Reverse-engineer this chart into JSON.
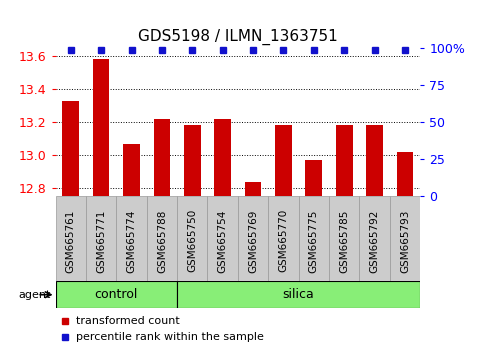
{
  "title": "GDS5198 / ILMN_1363751",
  "samples": [
    "GSM665761",
    "GSM665771",
    "GSM665774",
    "GSM665788",
    "GSM665750",
    "GSM665754",
    "GSM665769",
    "GSM665770",
    "GSM665775",
    "GSM665785",
    "GSM665792",
    "GSM665793"
  ],
  "transformed_counts": [
    13.33,
    13.58,
    13.07,
    13.22,
    13.18,
    13.22,
    12.84,
    13.18,
    12.97,
    13.18,
    13.18,
    13.02
  ],
  "percentile_ranks": [
    100,
    100,
    100,
    100,
    100,
    100,
    100,
    100,
    100,
    100,
    100,
    100
  ],
  "groups": [
    "control",
    "control",
    "control",
    "control",
    "silica",
    "silica",
    "silica",
    "silica",
    "silica",
    "silica",
    "silica",
    "silica"
  ],
  "ylim_left": [
    12.75,
    13.65
  ],
  "ylim_right": [
    0,
    100
  ],
  "yticks_left": [
    12.8,
    13.0,
    13.2,
    13.4,
    13.6
  ],
  "yticks_right": [
    0,
    25,
    50,
    75,
    100
  ],
  "bar_color": "#cc0000",
  "dot_color": "#1111cc",
  "control_color": "#88ee77",
  "silica_color": "#88ee77",
  "cell_color": "#cccccc",
  "cell_edge_color": "#999999",
  "agent_label": "agent",
  "legend_red": "transformed count",
  "legend_blue": "percentile rank within the sample",
  "bar_width": 0.55,
  "n_control": 4,
  "n_silica": 8
}
